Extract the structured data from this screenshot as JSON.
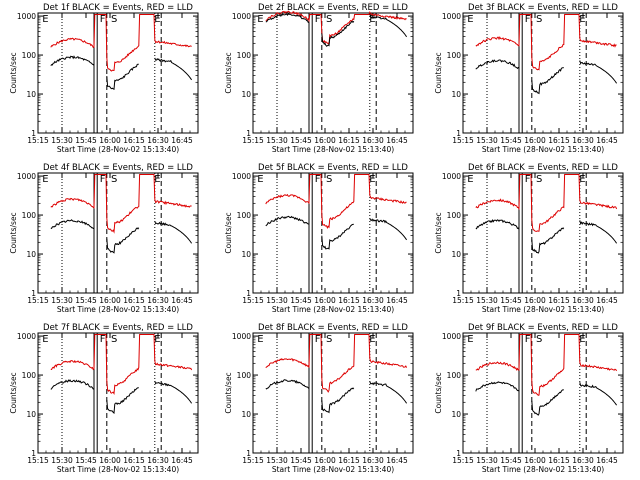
{
  "chart_data": {
    "type": "line",
    "common": {
      "ylabel": "Counts/sec",
      "xlabel": "Start Time (28-Nov-02 15:13:40)",
      "xticks": [
        "15:15",
        "15:30",
        "15:45",
        "16:00",
        "16:15",
        "16:30",
        "16:45"
      ],
      "yticks": [
        "1",
        "10",
        "100",
        "1000"
      ],
      "ylim": [
        1,
        1200
      ],
      "xlim_minutes": [
        0,
        100
      ],
      "log_y": true,
      "markers": [
        {
          "label": "E",
          "t": 2
        },
        {
          "label": "F",
          "t": 38
        },
        {
          "label": "S",
          "t": 45
        },
        {
          "label": "E",
          "t": 72
        }
      ],
      "dotted_lines": [
        15,
        73
      ],
      "dashed_lines": [
        43,
        77
      ],
      "solid_lines": [
        35,
        37
      ]
    },
    "colors": {
      "events": "#000000",
      "lld": "#dd0000"
    },
    "panels": [
      {
        "title": "Det 1f BLACK = Events, RED = LLD",
        "events_level": 55,
        "lld_level": 160
      },
      {
        "title": "Det 2f BLACK = Events, RED = LLD",
        "events_level": 700,
        "lld_level": 800
      },
      {
        "title": "Det 3f BLACK = Events, RED = LLD",
        "events_level": 45,
        "lld_level": 170
      },
      {
        "title": "Det 4f BLACK = Events, RED = LLD",
        "events_level": 45,
        "lld_level": 160
      },
      {
        "title": "Det 5f BLACK = Events, RED = LLD",
        "events_level": 55,
        "lld_level": 200
      },
      {
        "title": "Det 6f BLACK = Events, RED = LLD",
        "events_level": 45,
        "lld_level": 150
      },
      {
        "title": "Det 7f BLACK = Events, RED = LLD",
        "events_level": 45,
        "lld_level": 140
      },
      {
        "title": "Det 8f BLACK = Events, RED = LLD",
        "events_level": 45,
        "lld_level": 160
      },
      {
        "title": "Det 9f BLACK = Events, RED = LLD",
        "events_level": 40,
        "lld_level": 130
      }
    ]
  }
}
